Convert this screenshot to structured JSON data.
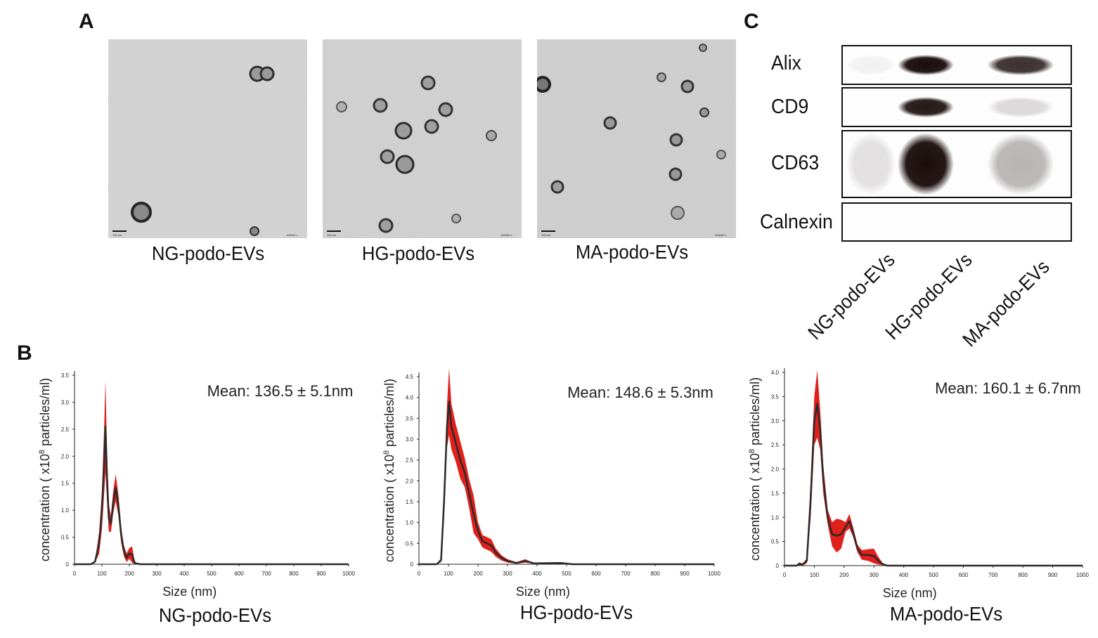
{
  "panels": {
    "a": "A",
    "b": "B",
    "c": "C"
  },
  "tem": [
    {
      "label": "NG-podo-EVs",
      "scale_bar": "100 nm",
      "magnification": "100000 x"
    },
    {
      "label": "HG-podo-EVs",
      "scale_bar": "100 nm",
      "magnification": "100000 x"
    },
    {
      "label": "MA-podo-EVs",
      "scale_bar": "100 nm",
      "magnification": "100000 x"
    }
  ],
  "western_blot": {
    "proteins": [
      "Alix",
      "CD9",
      "CD63",
      "Calnexin"
    ],
    "lanes": [
      "NG-podo-EVs",
      "HG-podo-EVs",
      "MA-podo-EVs"
    ],
    "band_intensity": [
      [
        0.05,
        1.0,
        0.85
      ],
      [
        0.0,
        0.95,
        0.15
      ],
      [
        0.12,
        1.0,
        0.3
      ],
      [
        0.0,
        0.0,
        0.0
      ]
    ]
  },
  "chart_data": [
    {
      "type": "line",
      "title": "NG-podo-EVs",
      "annotation": "Mean: 136.5 ± 5.1nm",
      "xlabel": "Size (nm)",
      "ylabel_prefix": "concentration ( x10",
      "ylabel_exp": "8",
      "ylabel_suffix": " particles/ml)",
      "xlim": [
        0,
        1000
      ],
      "ylim": [
        0,
        3.5
      ],
      "xticks": [
        0,
        100,
        200,
        300,
        400,
        500,
        600,
        700,
        800,
        900,
        1000
      ],
      "yticks": [
        0,
        0.5,
        1.0,
        1.5,
        2.0,
        2.5,
        3.0,
        3.5
      ],
      "ytick_labels": [
        "0",
        "0.5",
        "1.0",
        "1.5",
        "2.0",
        "2.5",
        "3.0",
        "3.5"
      ],
      "series": [
        {
          "x": [
            0,
            60,
            75,
            90,
            100,
            108,
            113,
            118,
            125,
            133,
            140,
            150,
            160,
            170,
            180,
            190,
            200,
            210,
            220,
            240,
            1000
          ],
          "y": [
            0,
            0,
            0.05,
            0.4,
            1.0,
            1.9,
            2.55,
            1.7,
            0.85,
            0.75,
            1.1,
            1.42,
            1.1,
            0.55,
            0.25,
            0.12,
            0.2,
            0.18,
            0.02,
            0,
            0
          ],
          "err": [
            0,
            0,
            0.02,
            0.2,
            0.35,
            0.6,
            0.85,
            0.5,
            0.25,
            0.15,
            0.2,
            0.25,
            0.2,
            0.15,
            0.1,
            0.08,
            0.1,
            0.15,
            0.02,
            0,
            0
          ]
        }
      ]
    },
    {
      "type": "line",
      "title": "HG-podo-EVs",
      "annotation": "Mean: 148.6 ± 5.3nm",
      "xlabel": "Size (nm)",
      "ylabel_prefix": "concentration ( x10",
      "ylabel_exp": "8",
      "ylabel_suffix": " particles/ml)",
      "xlim": [
        0,
        1000
      ],
      "ylim": [
        0,
        4.5
      ],
      "xticks": [
        0,
        100,
        200,
        300,
        400,
        500,
        600,
        700,
        800,
        900,
        1000
      ],
      "yticks": [
        0,
        0.5,
        1.0,
        1.5,
        2.0,
        2.5,
        3.0,
        3.5,
        4.0,
        4.5
      ],
      "ytick_labels": [
        "0",
        "0.5",
        "1.0",
        "1.5",
        "2.0",
        "2.5",
        "3.0",
        "3.5",
        "4.0",
        "4.5"
      ],
      "series": [
        {
          "x": [
            0,
            60,
            75,
            85,
            95,
            102,
            110,
            125,
            140,
            155,
            170,
            185,
            200,
            215,
            230,
            245,
            260,
            280,
            300,
            330,
            360,
            390,
            480,
            520,
            1000
          ],
          "y": [
            0,
            0,
            0.1,
            1.5,
            3.3,
            3.9,
            3.3,
            2.9,
            2.5,
            2.2,
            1.7,
            1.2,
            0.8,
            0.55,
            0.5,
            0.45,
            0.28,
            0.15,
            0.08,
            0.03,
            0.08,
            0.02,
            0.03,
            0,
            0
          ],
          "err": [
            0,
            0,
            0.05,
            0.4,
            0.5,
            0.8,
            0.55,
            0.45,
            0.45,
            0.35,
            0.35,
            0.45,
            0.2,
            0.15,
            0.15,
            0.15,
            0.1,
            0.06,
            0.04,
            0.02,
            0.04,
            0.01,
            0.02,
            0,
            0
          ]
        }
      ]
    },
    {
      "type": "line",
      "title": "MA-podo-EVs",
      "annotation": "Mean: 160.1 ± 6.7nm",
      "xlabel": "Size (nm)",
      "ylabel_prefix": "concentration ( x10",
      "ylabel_exp": "8",
      "ylabel_suffix": " particles/ml)",
      "xlim": [
        0,
        1000
      ],
      "ylim": [
        0,
        4.0
      ],
      "xticks": [
        0,
        100,
        200,
        300,
        400,
        500,
        600,
        700,
        800,
        900,
        1000
      ],
      "yticks": [
        0,
        0.5,
        1.0,
        1.5,
        2.0,
        2.5,
        3.0,
        3.5,
        4.0
      ],
      "ytick_labels": [
        "0",
        "0.5",
        "1.0",
        "1.5",
        "2.0",
        "2.5",
        "3.0",
        "3.5",
        "4.0"
      ],
      "series": [
        {
          "x": [
            0,
            40,
            50,
            60,
            75,
            88,
            100,
            110,
            120,
            130,
            145,
            160,
            175,
            190,
            205,
            218,
            230,
            245,
            260,
            280,
            300,
            315,
            330,
            345,
            1000
          ],
          "y": [
            0,
            0,
            0.04,
            0.02,
            0.1,
            1.4,
            3.0,
            3.35,
            2.8,
            1.8,
            1.0,
            0.65,
            0.62,
            0.65,
            0.8,
            0.92,
            0.7,
            0.35,
            0.22,
            0.22,
            0.2,
            0.1,
            0.03,
            0,
            0
          ],
          "err": [
            0,
            0,
            0.03,
            0.02,
            0.05,
            0.4,
            0.5,
            0.7,
            0.4,
            0.3,
            0.15,
            0.25,
            0.35,
            0.3,
            0.1,
            0.15,
            0.1,
            0.08,
            0.1,
            0.12,
            0.15,
            0.08,
            0.02,
            0,
            0
          ]
        }
      ]
    }
  ],
  "colors": {
    "error_band": "#e0201b",
    "mean_line": "#2a2a2a",
    "band_dark": "#1a0d0b"
  }
}
